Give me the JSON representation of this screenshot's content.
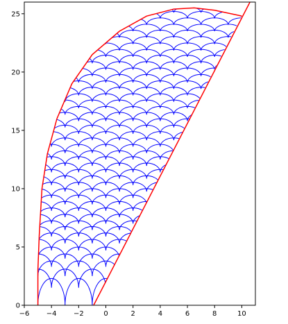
{
  "chart_data": {
    "type": "arcs",
    "xlim": [
      -6,
      11
    ],
    "ylim": [
      0,
      26
    ],
    "xticks": [
      {
        "value": -6,
        "label": "−6"
      },
      {
        "value": -4,
        "label": "−4"
      },
      {
        "value": -2,
        "label": "−2"
      },
      0,
      2,
      4,
      6,
      8,
      10
    ],
    "yticks": [
      0,
      5,
      10,
      15,
      20,
      25
    ],
    "arc_color": "#0000ff",
    "arc_width": 2,
    "arcs": [
      {
        "y": 0,
        "h": 2.3,
        "x0": -5
      },
      {
        "y": 1.5,
        "h": 1.6,
        "x0": -6
      },
      {
        "y": 2.5,
        "h": 1.3,
        "x0": -5
      },
      {
        "y": 3.3,
        "h": 1.1,
        "x0": -6
      },
      {
        "y": 4.0,
        "h": 1.0,
        "x0": -5
      },
      {
        "y": 4.7,
        "h": 0.95,
        "x0": -6
      },
      {
        "y": 5.3,
        "h": 0.9,
        "x0": -5
      },
      {
        "y": 5.9,
        "h": 0.85,
        "x0": -6
      },
      {
        "y": 6.45,
        "h": 0.8,
        "x0": -5
      },
      {
        "y": 7.0,
        "h": 0.8,
        "x0": -6
      },
      {
        "y": 7.55,
        "h": 0.8,
        "x0": -5
      },
      {
        "y": 8.1,
        "h": 0.8,
        "x0": -6
      },
      {
        "y": 8.65,
        "h": 0.8,
        "x0": -5
      },
      {
        "y": 9.2,
        "h": 0.8,
        "x0": -6
      },
      {
        "y": 9.75,
        "h": 0.8,
        "x0": -5
      },
      {
        "y": 10.3,
        "h": 0.8,
        "x0": -6
      },
      {
        "y": 10.85,
        "h": 0.8,
        "x0": -5
      },
      {
        "y": 11.4,
        "h": 0.8,
        "x0": -6
      },
      {
        "y": 11.95,
        "h": 0.8,
        "x0": -5
      },
      {
        "y": 12.5,
        "h": 0.75,
        "x0": -6
      },
      {
        "y": 13.05,
        "h": 0.75,
        "x0": -5
      },
      {
        "y": 13.6,
        "h": 0.75,
        "x0": -6
      },
      {
        "y": 14.15,
        "h": 0.75,
        "x0": -5
      },
      {
        "y": 14.7,
        "h": 0.75,
        "x0": -6
      },
      {
        "y": 15.25,
        "h": 0.75,
        "x0": -5
      },
      {
        "y": 15.8,
        "h": 0.75,
        "x0": -6
      },
      {
        "y": 16.35,
        "h": 0.7,
        "x0": -5
      },
      {
        "y": 16.9,
        "h": 0.7,
        "x0": -6
      },
      {
        "y": 17.45,
        "h": 0.7,
        "x0": -5
      },
      {
        "y": 18.0,
        "h": 0.7,
        "x0": -6
      },
      {
        "y": 18.55,
        "h": 0.7,
        "x0": -5
      },
      {
        "y": 19.1,
        "h": 0.7,
        "x0": -6
      },
      {
        "y": 19.65,
        "h": 0.7,
        "x0": -5
      },
      {
        "y": 20.2,
        "h": 0.7,
        "x0": -6
      },
      {
        "y": 20.75,
        "h": 0.7,
        "x0": -5
      },
      {
        "y": 21.3,
        "h": 0.65,
        "x0": -6
      },
      {
        "y": 21.85,
        "h": 0.65,
        "x0": -5
      },
      {
        "y": 22.4,
        "h": 0.65,
        "x0": -6
      },
      {
        "y": 22.95,
        "h": 0.65,
        "x0": -5
      },
      {
        "y": 23.5,
        "h": 0.6,
        "x0": -6
      },
      {
        "y": 24.05,
        "h": 0.6,
        "x0": -5
      },
      {
        "y": 24.6,
        "h": 0.6,
        "x0": -6
      },
      {
        "y": 25.1,
        "h": 0.5,
        "x0": -5
      }
    ],
    "series": [
      {
        "color": "#ff0000",
        "x": [
          -5,
          -5,
          -4.9,
          -4.7,
          -4.3,
          -3.6,
          -2.5,
          -1,
          1,
          3,
          5,
          6.5,
          8,
          10
        ],
        "y": [
          0,
          3,
          6,
          10,
          13,
          16,
          19,
          21.5,
          23.5,
          24.8,
          25.4,
          25.5,
          25.3,
          24.8
        ]
      },
      {
        "color": "#ff0000",
        "x": [
          -0.9,
          10.6
        ],
        "y": [
          0,
          26
        ]
      }
    ]
  }
}
